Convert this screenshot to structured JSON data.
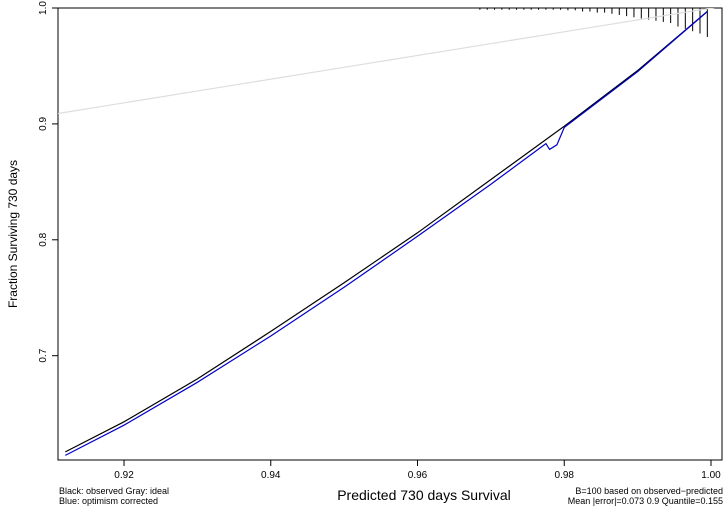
{
  "chart_data": {
    "type": "line",
    "title": "",
    "xlabel": "Predicted  730 days Survival",
    "ylabel": "Fraction Surviving 730 days",
    "xlim": [
      0.911,
      1.0015
    ],
    "ylim": [
      0.61,
      1.0
    ],
    "x_ticks": [
      0.92,
      0.94,
      0.96,
      0.98,
      1.0
    ],
    "x_tick_labels": [
      "0.92",
      "0.94",
      "0.96",
      "0.98",
      "1.00"
    ],
    "y_ticks": [
      0.7,
      0.8,
      0.9,
      1.0
    ],
    "y_tick_labels": [
      "0.7",
      "0.8",
      "0.9",
      "1.0"
    ],
    "grid": false,
    "series": [
      {
        "name": "ideal",
        "color": "#dddddd",
        "x": [
          0.911,
          1.0015
        ],
        "y": [
          0.909,
          1.0015
        ]
      },
      {
        "name": "observed",
        "color": "#000000",
        "x": [
          0.912,
          0.92,
          0.93,
          0.94,
          0.95,
          0.96,
          0.97,
          0.98,
          0.99,
          0.9995
        ],
        "y": [
          0.617,
          0.643,
          0.68,
          0.721,
          0.763,
          0.806,
          0.852,
          0.898,
          0.946,
          0.997
        ]
      },
      {
        "name": "optimism corrected",
        "color": "#0000cc",
        "x": [
          0.912,
          0.92,
          0.93,
          0.94,
          0.95,
          0.96,
          0.97,
          0.9775,
          0.978,
          0.979,
          0.98,
          0.99,
          0.9995
        ],
        "y": [
          0.614,
          0.64,
          0.677,
          0.717,
          0.759,
          0.803,
          0.848,
          0.883,
          0.878,
          0.882,
          0.897,
          0.945,
          0.997
        ]
      }
    ],
    "rug_x": [
      0.9685,
      0.9695,
      0.9705,
      0.9715,
      0.9725,
      0.9735,
      0.9745,
      0.9755,
      0.9765,
      0.9775,
      0.9785,
      0.9795,
      0.9805,
      0.9815,
      0.9825,
      0.9835,
      0.9845,
      0.9855,
      0.9865,
      0.9875,
      0.9885,
      0.9895,
      0.9905,
      0.9915,
      0.9925,
      0.9935,
      0.9945,
      0.9955,
      0.9965,
      0.9975,
      0.9985,
      0.9995
    ],
    "rug_len": [
      0.0015,
      0.0015,
      0.0015,
      0.0015,
      0.0015,
      0.0015,
      0.0015,
      0.0015,
      0.0015,
      0.0015,
      0.0015,
      0.0015,
      0.002,
      0.002,
      0.003,
      0.003,
      0.004,
      0.004,
      0.005,
      0.006,
      0.007,
      0.008,
      0.009,
      0.01,
      0.011,
      0.012,
      0.013,
      0.016,
      0.018,
      0.02,
      0.022,
      0.025
    ],
    "legend_left": [
      "Black: observed  Gray: ideal",
      "Blue:  optimism corrected"
    ],
    "legend_right": [
      "B=100 based on observed−predicted",
      "Mean |error|=0.073  0.9 Quantile=0.155"
    ]
  }
}
